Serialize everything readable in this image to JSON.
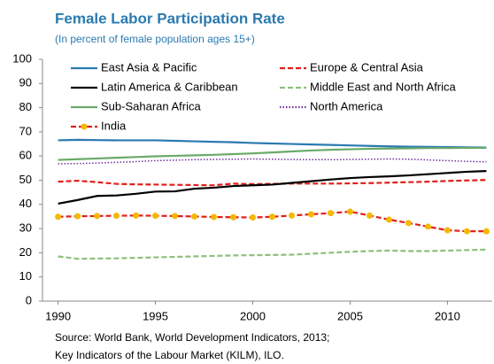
{
  "chart_data": {
    "type": "line",
    "title": "Female Labor Participation Rate",
    "subtitle": "(In percent of female population ages 15+)",
    "notes": [
      "Source:  World Bank, World Development Indicators, 2013;",
      "Key Indicators of the Labour Market (KILM), ILO."
    ],
    "x": [
      1990,
      1991,
      1992,
      1993,
      1994,
      1995,
      1996,
      1997,
      1998,
      1999,
      2000,
      2001,
      2002,
      2003,
      2004,
      2005,
      2006,
      2007,
      2008,
      2009,
      2010,
      2011,
      2012
    ],
    "xlim": [
      1989.2,
      2012.3
    ],
    "xticks": [
      1990,
      1995,
      2000,
      2005,
      2010
    ],
    "ylim": [
      0,
      100
    ],
    "yticks": [
      0,
      10,
      20,
      30,
      40,
      50,
      60,
      70,
      80,
      90,
      100
    ],
    "legend": "top",
    "series": [
      {
        "name": "East Asia & Pacific",
        "color": "#2a7ab0",
        "line_style": "solid",
        "values": [
          66.5,
          66.7,
          66.6,
          66.5,
          66.5,
          66.5,
          66.3,
          66.1,
          65.9,
          65.7,
          65.4,
          65.2,
          65.0,
          64.8,
          64.6,
          64.4,
          64.2,
          64.0,
          63.9,
          63.8,
          63.7,
          63.6,
          63.5
        ]
      },
      {
        "name": "Europe & Central Asia",
        "color": "#e0201b",
        "line_style": "dashed",
        "values": [
          49.4,
          49.8,
          49.2,
          48.5,
          48.3,
          48.2,
          48.1,
          48.0,
          47.9,
          48.6,
          48.4,
          48.5,
          48.6,
          48.6,
          48.6,
          48.7,
          48.8,
          49.0,
          49.2,
          49.4,
          49.7,
          49.9,
          50.1
        ]
      },
      {
        "name": "Latin America & Caribbean",
        "color": "#000000",
        "line_style": "solid",
        "values": [
          40.3,
          41.8,
          43.5,
          43.7,
          44.4,
          45.3,
          45.4,
          46.5,
          46.9,
          47.6,
          47.9,
          48.2,
          48.9,
          49.6,
          50.3,
          50.9,
          51.3,
          51.6,
          52.0,
          52.5,
          53.0,
          53.5,
          53.8
        ]
      },
      {
        "name": "Middle East and North Africa",
        "color": "#8cc07c",
        "line_style": "dashed",
        "values": [
          18.5,
          17.5,
          17.6,
          17.7,
          17.9,
          18.1,
          18.3,
          18.5,
          18.7,
          18.9,
          19.0,
          19.1,
          19.2,
          19.6,
          20.0,
          20.4,
          20.7,
          20.9,
          20.7,
          20.7,
          20.9,
          21.1,
          21.3
        ]
      },
      {
        "name": "Sub-Saharan Africa",
        "color": "#6aaa6a",
        "line_style": "solid",
        "values": [
          58.4,
          58.7,
          59.0,
          59.3,
          59.6,
          59.9,
          60.1,
          60.3,
          60.5,
          60.8,
          61.1,
          61.5,
          61.9,
          62.3,
          62.6,
          62.8,
          63.0,
          63.1,
          63.2,
          63.3,
          63.3,
          63.4,
          63.4
        ]
      },
      {
        "name": "North America",
        "color": "#7030a0",
        "line_style": "dotted",
        "values": [
          56.8,
          56.9,
          57.1,
          57.4,
          57.7,
          58.1,
          58.3,
          58.5,
          58.6,
          58.7,
          58.8,
          58.7,
          58.6,
          58.5,
          58.5,
          58.6,
          58.7,
          58.8,
          58.7,
          58.4,
          58.1,
          57.8,
          57.6
        ]
      },
      {
        "name": "India",
        "color": "#e0201b",
        "line_style": "dashed",
        "marker": "circle",
        "marker_color": "#f5b800",
        "values": [
          34.9,
          35.1,
          35.2,
          35.3,
          35.4,
          35.3,
          35.2,
          35.0,
          34.8,
          34.7,
          34.6,
          34.9,
          35.4,
          35.9,
          36.4,
          37.0,
          35.4,
          33.7,
          32.3,
          30.8,
          29.3,
          28.9,
          28.9
        ]
      }
    ]
  }
}
